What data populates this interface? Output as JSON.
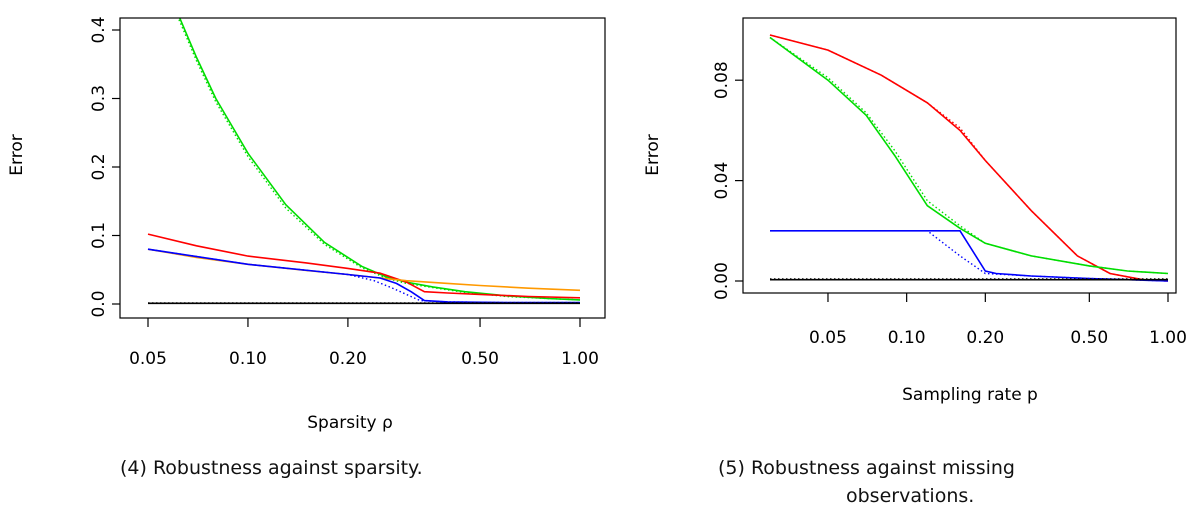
{
  "chart_data": [
    {
      "type": "line",
      "xscale": "log",
      "xlim": [
        0.05,
        1.0
      ],
      "ylim": [
        0,
        0.4
      ],
      "xlabel": "Sparsity ρ",
      "ylabel": "Error",
      "xticks": [
        0.05,
        0.1,
        0.2,
        0.5,
        1.0
      ],
      "xtick_labels": [
        "0.05",
        "0.10",
        "0.20",
        "0.50",
        "1.00"
      ],
      "yticks": [
        0.0,
        0.1,
        0.2,
        0.3,
        0.4
      ],
      "ytick_labels": [
        "0.0",
        "0.1",
        "0.2",
        "0.3",
        "0.4"
      ],
      "caption": "(4) Robustness against sparsity.",
      "series": [
        {
          "color": "#00dd00",
          "style": "solid",
          "x": [
            0.062,
            0.07,
            0.08,
            0.1,
            0.13,
            0.17,
            0.22,
            0.26,
            0.3,
            0.36,
            0.45,
            0.6,
            0.8,
            1.0
          ],
          "y": [
            0.42,
            0.36,
            0.3,
            0.22,
            0.145,
            0.09,
            0.055,
            0.04,
            0.032,
            0.025,
            0.018,
            0.012,
            0.008,
            0.006
          ]
        },
        {
          "color": "#00dd00",
          "style": "dotted",
          "x": [
            0.062,
            0.07,
            0.08,
            0.1,
            0.13,
            0.17,
            0.22,
            0.26,
            0.3,
            0.36,
            0.45,
            0.6,
            0.8,
            1.0
          ],
          "y": [
            0.415,
            0.355,
            0.295,
            0.215,
            0.14,
            0.087,
            0.053,
            0.038,
            0.03,
            0.024,
            0.017,
            0.011,
            0.008,
            0.006
          ]
        },
        {
          "color": "#ff0000",
          "style": "solid",
          "x": [
            0.05,
            0.07,
            0.1,
            0.15,
            0.2,
            0.25,
            0.3,
            0.34,
            0.4,
            0.5,
            0.7,
            1.0
          ],
          "y": [
            0.102,
            0.085,
            0.07,
            0.06,
            0.052,
            0.045,
            0.032,
            0.018,
            0.016,
            0.014,
            0.011,
            0.009
          ]
        },
        {
          "color": "#ff9900",
          "style": "solid",
          "x": [
            0.05,
            0.07,
            0.1,
            0.15,
            0.2,
            0.25,
            0.3,
            0.4,
            0.5,
            0.7,
            1.0
          ],
          "y": [
            0.08,
            0.068,
            0.058,
            0.049,
            0.043,
            0.038,
            0.034,
            0.03,
            0.027,
            0.023,
            0.02
          ]
        },
        {
          "color": "#0000ff",
          "style": "solid",
          "x": [
            0.05,
            0.1,
            0.2,
            0.25,
            0.28,
            0.31,
            0.34,
            0.4,
            0.6,
            1.0
          ],
          "y": [
            0.08,
            0.058,
            0.043,
            0.038,
            0.03,
            0.018,
            0.005,
            0.003,
            0.002,
            0.002
          ]
        },
        {
          "color": "#0000ff",
          "style": "dotted",
          "x": [
            0.05,
            0.1,
            0.2,
            0.24,
            0.27,
            0.3,
            0.33,
            0.4,
            0.6,
            1.0
          ],
          "y": [
            0.08,
            0.058,
            0.043,
            0.034,
            0.024,
            0.014,
            0.005,
            0.003,
            0.002,
            0.002
          ]
        },
        {
          "color": "#000000",
          "style": "solid",
          "x": [
            0.05,
            1.0
          ],
          "y": [
            0.001,
            0.001
          ]
        },
        {
          "color": "#000000",
          "style": "dotted",
          "x": [
            0.05,
            1.0
          ],
          "y": [
            0.0015,
            0.0015
          ]
        }
      ]
    },
    {
      "type": "line",
      "xscale": "log",
      "xlim": [
        0.03,
        1.0
      ],
      "ylim": [
        0,
        0.1
      ],
      "xlabel": "Sampling rate p",
      "ylabel": "Error",
      "xticks": [
        0.05,
        0.1,
        0.2,
        0.5,
        1.0
      ],
      "xtick_labels": [
        "0.05",
        "0.10",
        "0.20",
        "0.50",
        "1.00"
      ],
      "yticks": [
        0.0,
        0.04,
        0.08
      ],
      "ytick_labels": [
        "0.00",
        "0.04",
        "0.08"
      ],
      "caption": "(5) Robustness against missing\nobservations.",
      "series": [
        {
          "color": "#ff0000",
          "style": "solid",
          "x": [
            0.03,
            0.05,
            0.08,
            0.12,
            0.16,
            0.2,
            0.3,
            0.45,
            0.6,
            0.8,
            1.0
          ],
          "y": [
            0.098,
            0.092,
            0.082,
            0.071,
            0.06,
            0.048,
            0.028,
            0.01,
            0.003,
            0.0005,
            0.0
          ]
        },
        {
          "color": "#ff0000",
          "style": "dotted",
          "x": [
            0.03,
            0.05,
            0.08,
            0.12,
            0.16,
            0.2,
            0.3,
            0.45,
            0.6,
            0.8,
            1.0
          ],
          "y": [
            0.098,
            0.092,
            0.082,
            0.071,
            0.061,
            0.048,
            0.028,
            0.01,
            0.003,
            0.0005,
            0.0
          ]
        },
        {
          "color": "#00dd00",
          "style": "solid",
          "x": [
            0.03,
            0.05,
            0.07,
            0.09,
            0.12,
            0.16,
            0.2,
            0.3,
            0.5,
            0.7,
            1.0
          ],
          "y": [
            0.097,
            0.08,
            0.066,
            0.05,
            0.03,
            0.021,
            0.015,
            0.01,
            0.006,
            0.004,
            0.003
          ]
        },
        {
          "color": "#00dd00",
          "style": "dotted",
          "x": [
            0.03,
            0.05,
            0.07,
            0.09,
            0.12,
            0.16,
            0.2,
            0.3,
            0.5,
            0.7,
            1.0
          ],
          "y": [
            0.097,
            0.081,
            0.067,
            0.052,
            0.032,
            0.022,
            0.015,
            0.01,
            0.006,
            0.004,
            0.003
          ]
        },
        {
          "color": "#0000ff",
          "style": "solid",
          "x": [
            0.03,
            0.1,
            0.16,
            0.2,
            0.22,
            0.3,
            0.5,
            1.0
          ],
          "y": [
            0.02,
            0.02,
            0.02,
            0.004,
            0.003,
            0.002,
            0.001,
            0.0
          ]
        },
        {
          "color": "#0000ff",
          "style": "dotted",
          "x": [
            0.03,
            0.1,
            0.12,
            0.16,
            0.2,
            0.3,
            0.5,
            1.0
          ],
          "y": [
            0.02,
            0.02,
            0.02,
            0.01,
            0.003,
            0.002,
            0.001,
            0.0
          ]
        },
        {
          "color": "#000000",
          "style": "solid",
          "x": [
            0.03,
            1.0
          ],
          "y": [
            0.0005,
            0.0005
          ]
        },
        {
          "color": "#000000",
          "style": "dotted",
          "x": [
            0.03,
            1.0
          ],
          "y": [
            0.0008,
            0.0008
          ]
        }
      ]
    }
  ]
}
